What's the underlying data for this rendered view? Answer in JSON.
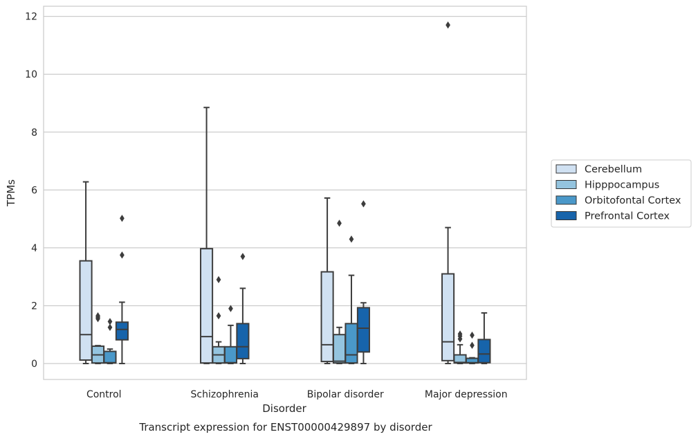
{
  "chart_data": {
    "type": "boxplot",
    "title": "Transcript expression for ENST00000429897 by disorder",
    "xlabel": "Disorder",
    "ylabel": "TPMs",
    "ylim": [
      -0.55,
      12.35
    ],
    "yticks": [
      0,
      2,
      4,
      6,
      8,
      10,
      12
    ],
    "grid": true,
    "legend_position": "right",
    "categories": [
      "Control",
      "Schizophrenia",
      "Bipolar disorder",
      "Major depression"
    ],
    "series": [
      {
        "name": "Cerebellum",
        "color": "#d0e1f2",
        "boxes": [
          {
            "whislo": 0.0,
            "q1": 0.12,
            "med": 1.0,
            "q3": 3.55,
            "whishi": 6.28,
            "fliers": []
          },
          {
            "whislo": 0.0,
            "q1": 0.02,
            "med": 0.93,
            "q3": 3.97,
            "whishi": 8.85,
            "fliers": []
          },
          {
            "whislo": 0.0,
            "q1": 0.07,
            "med": 0.65,
            "q3": 3.17,
            "whishi": 5.72,
            "fliers": []
          },
          {
            "whislo": 0.0,
            "q1": 0.1,
            "med": 0.75,
            "q3": 3.1,
            "whishi": 4.7,
            "fliers": [
              11.7
            ]
          }
        ]
      },
      {
        "name": "Hipppocampus",
        "color": "#94c4df",
        "boxes": [
          {
            "whislo": 0.0,
            "q1": 0.02,
            "med": 0.3,
            "q3": 0.6,
            "whishi": 0.62,
            "fliers": [
              1.55,
              1.6,
              1.65
            ]
          },
          {
            "whislo": 0.0,
            "q1": 0.02,
            "med": 0.3,
            "q3": 0.58,
            "whishi": 0.75,
            "fliers": [
              1.65,
              2.9
            ]
          },
          {
            "whislo": 0.0,
            "q1": 0.02,
            "med": 0.08,
            "q3": 1.0,
            "whishi": 1.25,
            "fliers": [
              4.85
            ]
          },
          {
            "whislo": 0.0,
            "q1": 0.02,
            "med": 0.04,
            "q3": 0.3,
            "whishi": 0.65,
            "fliers": [
              0.85,
              0.95,
              1.02
            ]
          }
        ]
      },
      {
        "name": "Orbitofontal Cortex",
        "color": "#4a98c9",
        "boxes": [
          {
            "whislo": 0.0,
            "q1": 0.02,
            "med": 0.03,
            "q3": 0.42,
            "whishi": 0.5,
            "fliers": [
              1.25,
              1.45
            ]
          },
          {
            "whislo": 0.0,
            "q1": 0.02,
            "med": 0.03,
            "q3": 0.58,
            "whishi": 1.32,
            "fliers": [
              1.9
            ]
          },
          {
            "whislo": 0.0,
            "q1": 0.02,
            "med": 0.3,
            "q3": 1.38,
            "whishi": 3.05,
            "fliers": [
              4.3
            ]
          },
          {
            "whislo": 0.0,
            "q1": 0.02,
            "med": 0.03,
            "q3": 0.18,
            "whishi": 0.2,
            "fliers": [
              0.63,
              0.98
            ]
          }
        ]
      },
      {
        "name": "Prefrontal Cortex",
        "color": "#1764ab",
        "boxes": [
          {
            "whislo": 0.0,
            "q1": 0.82,
            "med": 1.18,
            "q3": 1.43,
            "whishi": 2.12,
            "fliers": [
              3.75,
              5.02
            ]
          },
          {
            "whislo": 0.0,
            "q1": 0.17,
            "med": 0.58,
            "q3": 1.38,
            "whishi": 2.6,
            "fliers": [
              3.7
            ]
          },
          {
            "whislo": 0.0,
            "q1": 0.4,
            "med": 1.22,
            "q3": 1.93,
            "whishi": 2.1,
            "fliers": [
              5.52
            ]
          },
          {
            "whislo": 0.0,
            "q1": 0.03,
            "med": 0.33,
            "q3": 0.83,
            "whishi": 1.75,
            "fliers": []
          }
        ]
      }
    ]
  }
}
